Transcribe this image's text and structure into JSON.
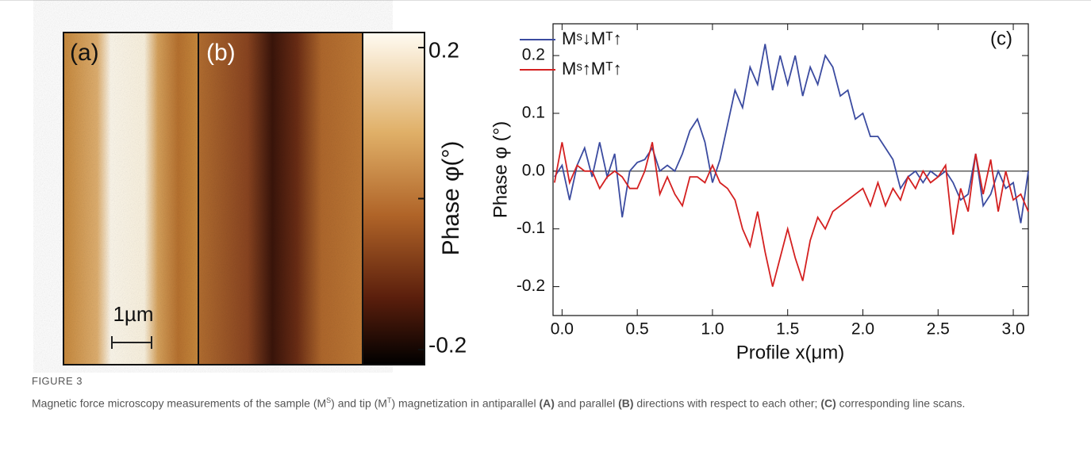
{
  "images": {
    "labels": [
      "(a)",
      "(b)"
    ],
    "scale_bar": "1µm"
  },
  "colorbar": {
    "label": "Phase φ(°)",
    "lim": [
      -0.22,
      0.22
    ],
    "ticks": [
      0.2,
      {
        "value": 0,
        "label": null
      },
      -0.2
    ]
  },
  "chart_data": {
    "type": "line",
    "panel_label": "(c)",
    "x_label": "Profile x(μm)",
    "y_label": "Phase φ (°)",
    "x": [
      -0.05,
      0,
      0.05,
      0.1,
      0.15,
      0.2,
      0.25,
      0.3,
      0.35,
      0.4,
      0.45,
      0.5,
      0.55,
      0.6,
      0.65,
      0.7,
      0.75,
      0.8,
      0.85,
      0.9,
      0.95,
      1,
      1.05,
      1.1,
      1.15,
      1.2,
      1.25,
      1.3,
      1.35,
      1.4,
      1.45,
      1.5,
      1.55,
      1.6,
      1.65,
      1.7,
      1.75,
      1.8,
      1.85,
      1.9,
      1.95,
      2,
      2.05,
      2.1,
      2.15,
      2.2,
      2.25,
      2.3,
      2.35,
      2.4,
      2.45,
      2.5,
      2.55,
      2.6,
      2.65,
      2.7,
      2.75,
      2.8,
      2.85,
      2.9,
      2.95,
      3,
      3.05,
      3.1
    ],
    "series": [
      {
        "name": "Mˢ↓Mᵀ↑",
        "color": "#3b4ba0",
        "values": [
          -0.01,
          0.01,
          -0.05,
          0.01,
          0.04,
          -0.01,
          0.05,
          -0.01,
          0.03,
          -0.08,
          0,
          0.015,
          0.02,
          0.04,
          0,
          0.01,
          0,
          0.03,
          0.07,
          0.09,
          0.05,
          -0.02,
          0.02,
          0.08,
          0.14,
          0.11,
          0.18,
          0.15,
          0.22,
          0.14,
          0.2,
          0.15,
          0.2,
          0.13,
          0.18,
          0.15,
          0.2,
          0.18,
          0.13,
          0.14,
          0.09,
          0.1,
          0.06,
          0.06,
          0.04,
          0.02,
          -0.03,
          -0.01,
          0,
          -0.02,
          0,
          -0.01,
          0,
          -0.02,
          -0.05,
          -0.04,
          0.03,
          -0.06,
          -0.04,
          0,
          -0.03,
          -0.02,
          -0.09,
          0
        ]
      },
      {
        "name": "Mˢ↑Mᵀ↑",
        "color": "#d42020",
        "values": [
          -0.02,
          0.05,
          -0.02,
          0.01,
          0,
          0,
          -0.03,
          -0.01,
          0,
          -0.01,
          -0.03,
          -0.03,
          0,
          0.05,
          -0.04,
          -0.01,
          -0.04,
          -0.06,
          -0.01,
          -0.01,
          -0.02,
          0.01,
          -0.02,
          -0.03,
          -0.05,
          -0.1,
          -0.13,
          -0.07,
          -0.14,
          -0.2,
          -0.15,
          -0.1,
          -0.15,
          -0.19,
          -0.12,
          -0.08,
          -0.1,
          -0.07,
          -0.06,
          -0.05,
          -0.04,
          -0.03,
          -0.06,
          -0.02,
          -0.06,
          -0.03,
          -0.05,
          -0.01,
          -0.03,
          0,
          -0.02,
          -0.01,
          0.01,
          -0.11,
          -0.03,
          -0.07,
          0.03,
          -0.04,
          0.02,
          -0.07,
          0,
          -0.05,
          -0.04,
          -0.07
        ]
      }
    ],
    "xlim": [
      -0.06,
      3.1
    ],
    "ylim": [
      -0.25,
      0.255
    ],
    "xticks": [
      {
        "value": 0,
        "label": "0.0"
      },
      0.5,
      {
        "value": 1,
        "label": "1.0"
      },
      1.5,
      {
        "value": 2,
        "label": "2.0"
      },
      2.5,
      {
        "value": 3,
        "label": "3.0"
      }
    ],
    "yticks": [
      0.2,
      0.1,
      {
        "value": 0,
        "label": "0.0"
      },
      -0.1,
      -0.2
    ],
    "legend": "upper left"
  },
  "caption": {
    "figure": "FIGURE 3",
    "parts": [
      "Magnetic force microscopy measurements of the sample (M",
      "S",
      ") and tip (M",
      "T",
      ") magnetization in antiparallel ",
      "(A)",
      " and parallel ",
      "(B)",
      " directions with respect to each other; ",
      "(C)",
      " corresponding line scans."
    ]
  }
}
